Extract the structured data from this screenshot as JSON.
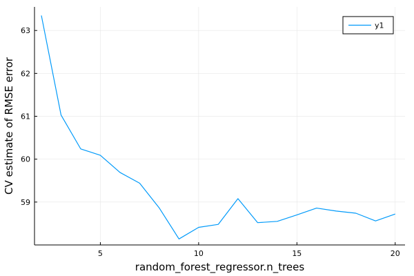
{
  "chart_data": {
    "type": "line",
    "title": "",
    "xlabel": "random_forest_regressor.n_trees",
    "ylabel": "CV estimate of RMSE error",
    "xlim": [
      1.65,
      20.5
    ],
    "ylim": [
      58.0,
      63.55
    ],
    "xticks": [
      5,
      10,
      15,
      20
    ],
    "yticks": [
      59,
      60,
      61,
      62,
      63
    ],
    "grid": true,
    "legend_position": "top-right",
    "series": [
      {
        "name": "y1",
        "color": "#009AFA",
        "x": [
          2,
          3,
          4,
          5,
          6,
          7,
          8,
          9,
          10,
          11,
          12,
          13,
          14,
          15,
          16,
          17,
          18,
          19,
          20
        ],
        "y": [
          63.35,
          61.03,
          60.24,
          60.09,
          59.69,
          59.44,
          58.86,
          58.14,
          58.41,
          58.48,
          59.08,
          58.52,
          58.55,
          58.7,
          58.86,
          58.79,
          58.74,
          58.56,
          58.72
        ]
      }
    ]
  }
}
